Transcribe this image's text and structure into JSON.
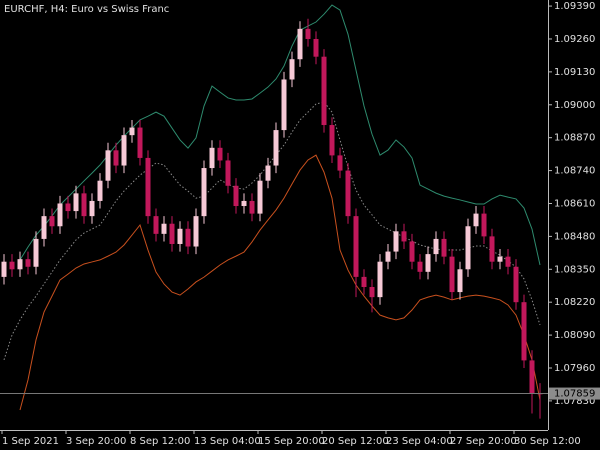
{
  "chart_data": {
    "type": "candlestick",
    "title": "EURCHF, H4:  Euro vs Swiss Franc",
    "up_color": "#f6c9d6",
    "down_color": "#c2185b",
    "open": [
      1.0832,
      1.0838,
      1.0835,
      1.0839,
      1.0836,
      1.0847,
      1.0856,
      1.0852,
      1.0861,
      1.0858,
      1.0865,
      1.0856,
      1.0862,
      1.087,
      1.0882,
      1.0876,
      1.0888,
      1.0891,
      1.0879,
      1.0856,
      1.0849,
      1.0853,
      1.0845,
      1.0851,
      1.0844,
      1.0856,
      1.0875,
      1.0883,
      1.0878,
      1.0868,
      1.086,
      1.0862,
      1.0857,
      1.087,
      1.0876,
      1.089,
      1.091,
      1.0918,
      1.093,
      1.0926,
      1.0919,
      1.0892,
      1.088,
      1.0874,
      1.0856,
      1.0832,
      1.0828,
      1.0824,
      1.0838,
      1.0842,
      1.085,
      1.0846,
      1.0838,
      1.0834,
      1.0841,
      1.0847,
      1.084,
      1.0826,
      1.0835,
      1.0852,
      1.0857,
      1.0848,
      1.0838,
      1.084,
      1.0836,
      1.0822,
      1.0799,
      1.0786
    ],
    "high": [
      1.0841,
      1.0841,
      1.0842,
      1.0842,
      1.085,
      1.0859,
      1.0859,
      1.0864,
      1.0864,
      1.0868,
      1.0868,
      1.0865,
      1.0873,
      1.0885,
      1.0885,
      1.0891,
      1.0894,
      1.0894,
      1.0882,
      1.0859,
      1.0856,
      1.0856,
      1.0854,
      1.0854,
      1.0859,
      1.0878,
      1.0886,
      1.0886,
      1.0881,
      1.0871,
      1.0865,
      1.0865,
      1.0873,
      1.0879,
      1.0893,
      1.0913,
      1.0921,
      1.0933,
      1.0934,
      1.0929,
      1.0922,
      1.0895,
      1.0883,
      1.0877,
      1.0859,
      1.0835,
      1.0831,
      1.0841,
      1.0845,
      1.0853,
      1.0853,
      1.0849,
      1.0841,
      1.0844,
      1.085,
      1.085,
      1.0843,
      1.0838,
      1.0855,
      1.086,
      1.086,
      1.0851,
      1.0843,
      1.0843,
      1.0839,
      1.0825,
      1.0803,
      1.079
    ],
    "low": [
      1.0829,
      1.0832,
      1.0832,
      1.0833,
      1.0833,
      1.0844,
      1.0849,
      1.0849,
      1.0855,
      1.0855,
      1.0853,
      1.0853,
      1.0859,
      1.0867,
      1.0873,
      1.0873,
      1.0885,
      1.0876,
      1.0853,
      1.0846,
      1.0846,
      1.0842,
      1.0842,
      1.0841,
      1.0841,
      1.0853,
      1.0872,
      1.0875,
      1.0865,
      1.0857,
      1.0857,
      1.0854,
      1.0854,
      1.0867,
      1.0873,
      1.0887,
      1.0907,
      1.0915,
      1.0923,
      1.0916,
      1.0889,
      1.0877,
      1.0871,
      1.0853,
      1.0824,
      1.0825,
      1.0818,
      1.0821,
      1.0835,
      1.0839,
      1.0843,
      1.0835,
      1.0831,
      1.0831,
      1.0838,
      1.0837,
      1.0823,
      1.0823,
      1.0832,
      1.0849,
      1.0845,
      1.0835,
      1.0835,
      1.0833,
      1.0819,
      1.0796,
      1.0778,
      1.0776
    ],
    "close": [
      1.0838,
      1.0835,
      1.0839,
      1.0836,
      1.0847,
      1.0856,
      1.0852,
      1.0861,
      1.0858,
      1.0865,
      1.0856,
      1.0862,
      1.087,
      1.0882,
      1.0876,
      1.0888,
      1.0891,
      1.0879,
      1.0856,
      1.0849,
      1.0853,
      1.0845,
      1.0851,
      1.0844,
      1.0856,
      1.0875,
      1.0883,
      1.0878,
      1.0868,
      1.086,
      1.0862,
      1.0857,
      1.087,
      1.0876,
      1.089,
      1.091,
      1.0918,
      1.093,
      1.0926,
      1.0919,
      1.0892,
      1.088,
      1.0874,
      1.0856,
      1.0832,
      1.0828,
      1.0824,
      1.0838,
      1.0842,
      1.085,
      1.0846,
      1.0838,
      1.0834,
      1.0841,
      1.0847,
      1.084,
      1.0826,
      1.0835,
      1.0852,
      1.0857,
      1.0848,
      1.0838,
      1.084,
      1.0836,
      1.0822,
      1.0799,
      1.0786,
      1.07859
    ],
    "lines": [
      {
        "color": "#2e8b6e",
        "dash": false,
        "values": [
          null,
          null,
          1.08387,
          1.08438,
          1.08485,
          1.08521,
          1.08561,
          1.08604,
          1.08635,
          1.08667,
          1.08699,
          1.0873,
          1.08762,
          1.08801,
          1.08841,
          1.08876,
          1.08908,
          1.0894,
          1.08955,
          1.08971,
          1.08955,
          1.08908,
          1.08861,
          1.08829,
          1.08869,
          1.08995,
          1.09074,
          1.0905,
          1.09027,
          1.09019,
          1.09019,
          1.09023,
          1.09046,
          1.0907,
          1.09102,
          1.09153,
          1.09232,
          1.09295,
          1.09311,
          1.09327,
          1.09358,
          1.09394,
          1.09374,
          1.09279,
          1.09137,
          1.08995,
          1.08884,
          1.08801,
          1.08821,
          1.08861,
          1.08833,
          1.0879,
          1.08683,
          1.08667,
          1.08651,
          1.08639,
          1.08631,
          1.08624,
          1.08616,
          1.08608,
          1.08608,
          1.08628,
          1.08643,
          1.08635,
          1.08628,
          1.08592,
          1.08509,
          1.08367
        ]
      },
      {
        "color": "#8a8a8a",
        "dash": true,
        "values": [
          1.07992,
          1.0809,
          1.0815,
          1.08201,
          1.08244,
          1.08292,
          1.08339,
          1.08387,
          1.08426,
          1.08466,
          1.08493,
          1.08509,
          1.08525,
          1.08572,
          1.0862,
          1.08659,
          1.08691,
          1.08722,
          1.08746,
          1.0877,
          1.08762,
          1.08722,
          1.08683,
          1.08659,
          1.08631,
          1.08639,
          1.08671,
          1.08703,
          1.08687,
          1.08671,
          1.08667,
          1.08691,
          1.08722,
          1.08762,
          1.08801,
          1.08841,
          1.08892,
          1.0894,
          1.08971,
          1.09003,
          1.09011,
          1.08971,
          1.08861,
          1.08754,
          1.08663,
          1.08604,
          1.08565,
          1.08525,
          1.08509,
          1.08493,
          1.08477,
          1.08462,
          1.08446,
          1.08438,
          1.0843,
          1.08426,
          1.08426,
          1.08426,
          1.08434,
          1.08442,
          1.08442,
          1.08422,
          1.08406,
          1.08383,
          1.08359,
          1.08312,
          1.08229,
          1.0813
        ]
      },
      {
        "color": "#c8501e",
        "dash": false,
        "values": [
          null,
          null,
          1.07794,
          1.07913,
          1.08071,
          1.08181,
          1.08244,
          1.08308,
          1.08331,
          1.08355,
          1.08371,
          1.08379,
          1.08387,
          1.08402,
          1.08418,
          1.08446,
          1.08485,
          1.08525,
          1.08426,
          1.08339,
          1.08292,
          1.0826,
          1.08248,
          1.08272,
          1.083,
          1.08319,
          1.08343,
          1.08367,
          1.08387,
          1.08402,
          1.08418,
          1.08458,
          1.08505,
          1.08545,
          1.08584,
          1.08631,
          1.08687,
          1.08742,
          1.08782,
          1.08801,
          1.08734,
          1.08631,
          1.08426,
          1.08347,
          1.08288,
          1.08244,
          1.08205,
          1.08169,
          1.08158,
          1.0815,
          1.08158,
          1.08189,
          1.08229,
          1.0824,
          1.08248,
          1.0824,
          1.08229,
          1.08237,
          1.08244,
          1.08248,
          1.08244,
          1.08237,
          1.08229,
          1.08209,
          1.08169,
          1.0809,
          1.07992,
          1.07834
        ]
      }
    ],
    "current_price": 1.07859,
    "ylim": [
      1.07715,
      1.09414
    ],
    "yticks": [
      {
        "value": 1.0939,
        "label": "1.09390"
      },
      {
        "value": 1.0926,
        "label": "1.09260"
      },
      {
        "value": 1.0913,
        "label": "1.09130"
      },
      {
        "value": 1.09,
        "label": "1.09000"
      },
      {
        "value": 1.0887,
        "label": "1.08870"
      },
      {
        "value": 1.0874,
        "label": "1.08740"
      },
      {
        "value": 1.0861,
        "label": "1.08610"
      },
      {
        "value": 1.0848,
        "label": "1.08480"
      },
      {
        "value": 1.0835,
        "label": "1.08350"
      },
      {
        "value": 1.0822,
        "label": "1.08220"
      },
      {
        "value": 1.0809,
        "label": "1.08090"
      },
      {
        "value": 1.0796,
        "label": "1.07960"
      },
      {
        "value": 1.0783,
        "label": "1.07830"
      }
    ],
    "xtick_labels": [
      "1 Sep 2021",
      "3 Sep 20:00",
      "8 Sep 12:00",
      "13 Sep 04:00",
      "15 Sep 20:00",
      "20 Sep 12:00",
      "23 Sep 04:00",
      "27 Sep 20:00",
      "30 Sep 12:00"
    ]
  }
}
